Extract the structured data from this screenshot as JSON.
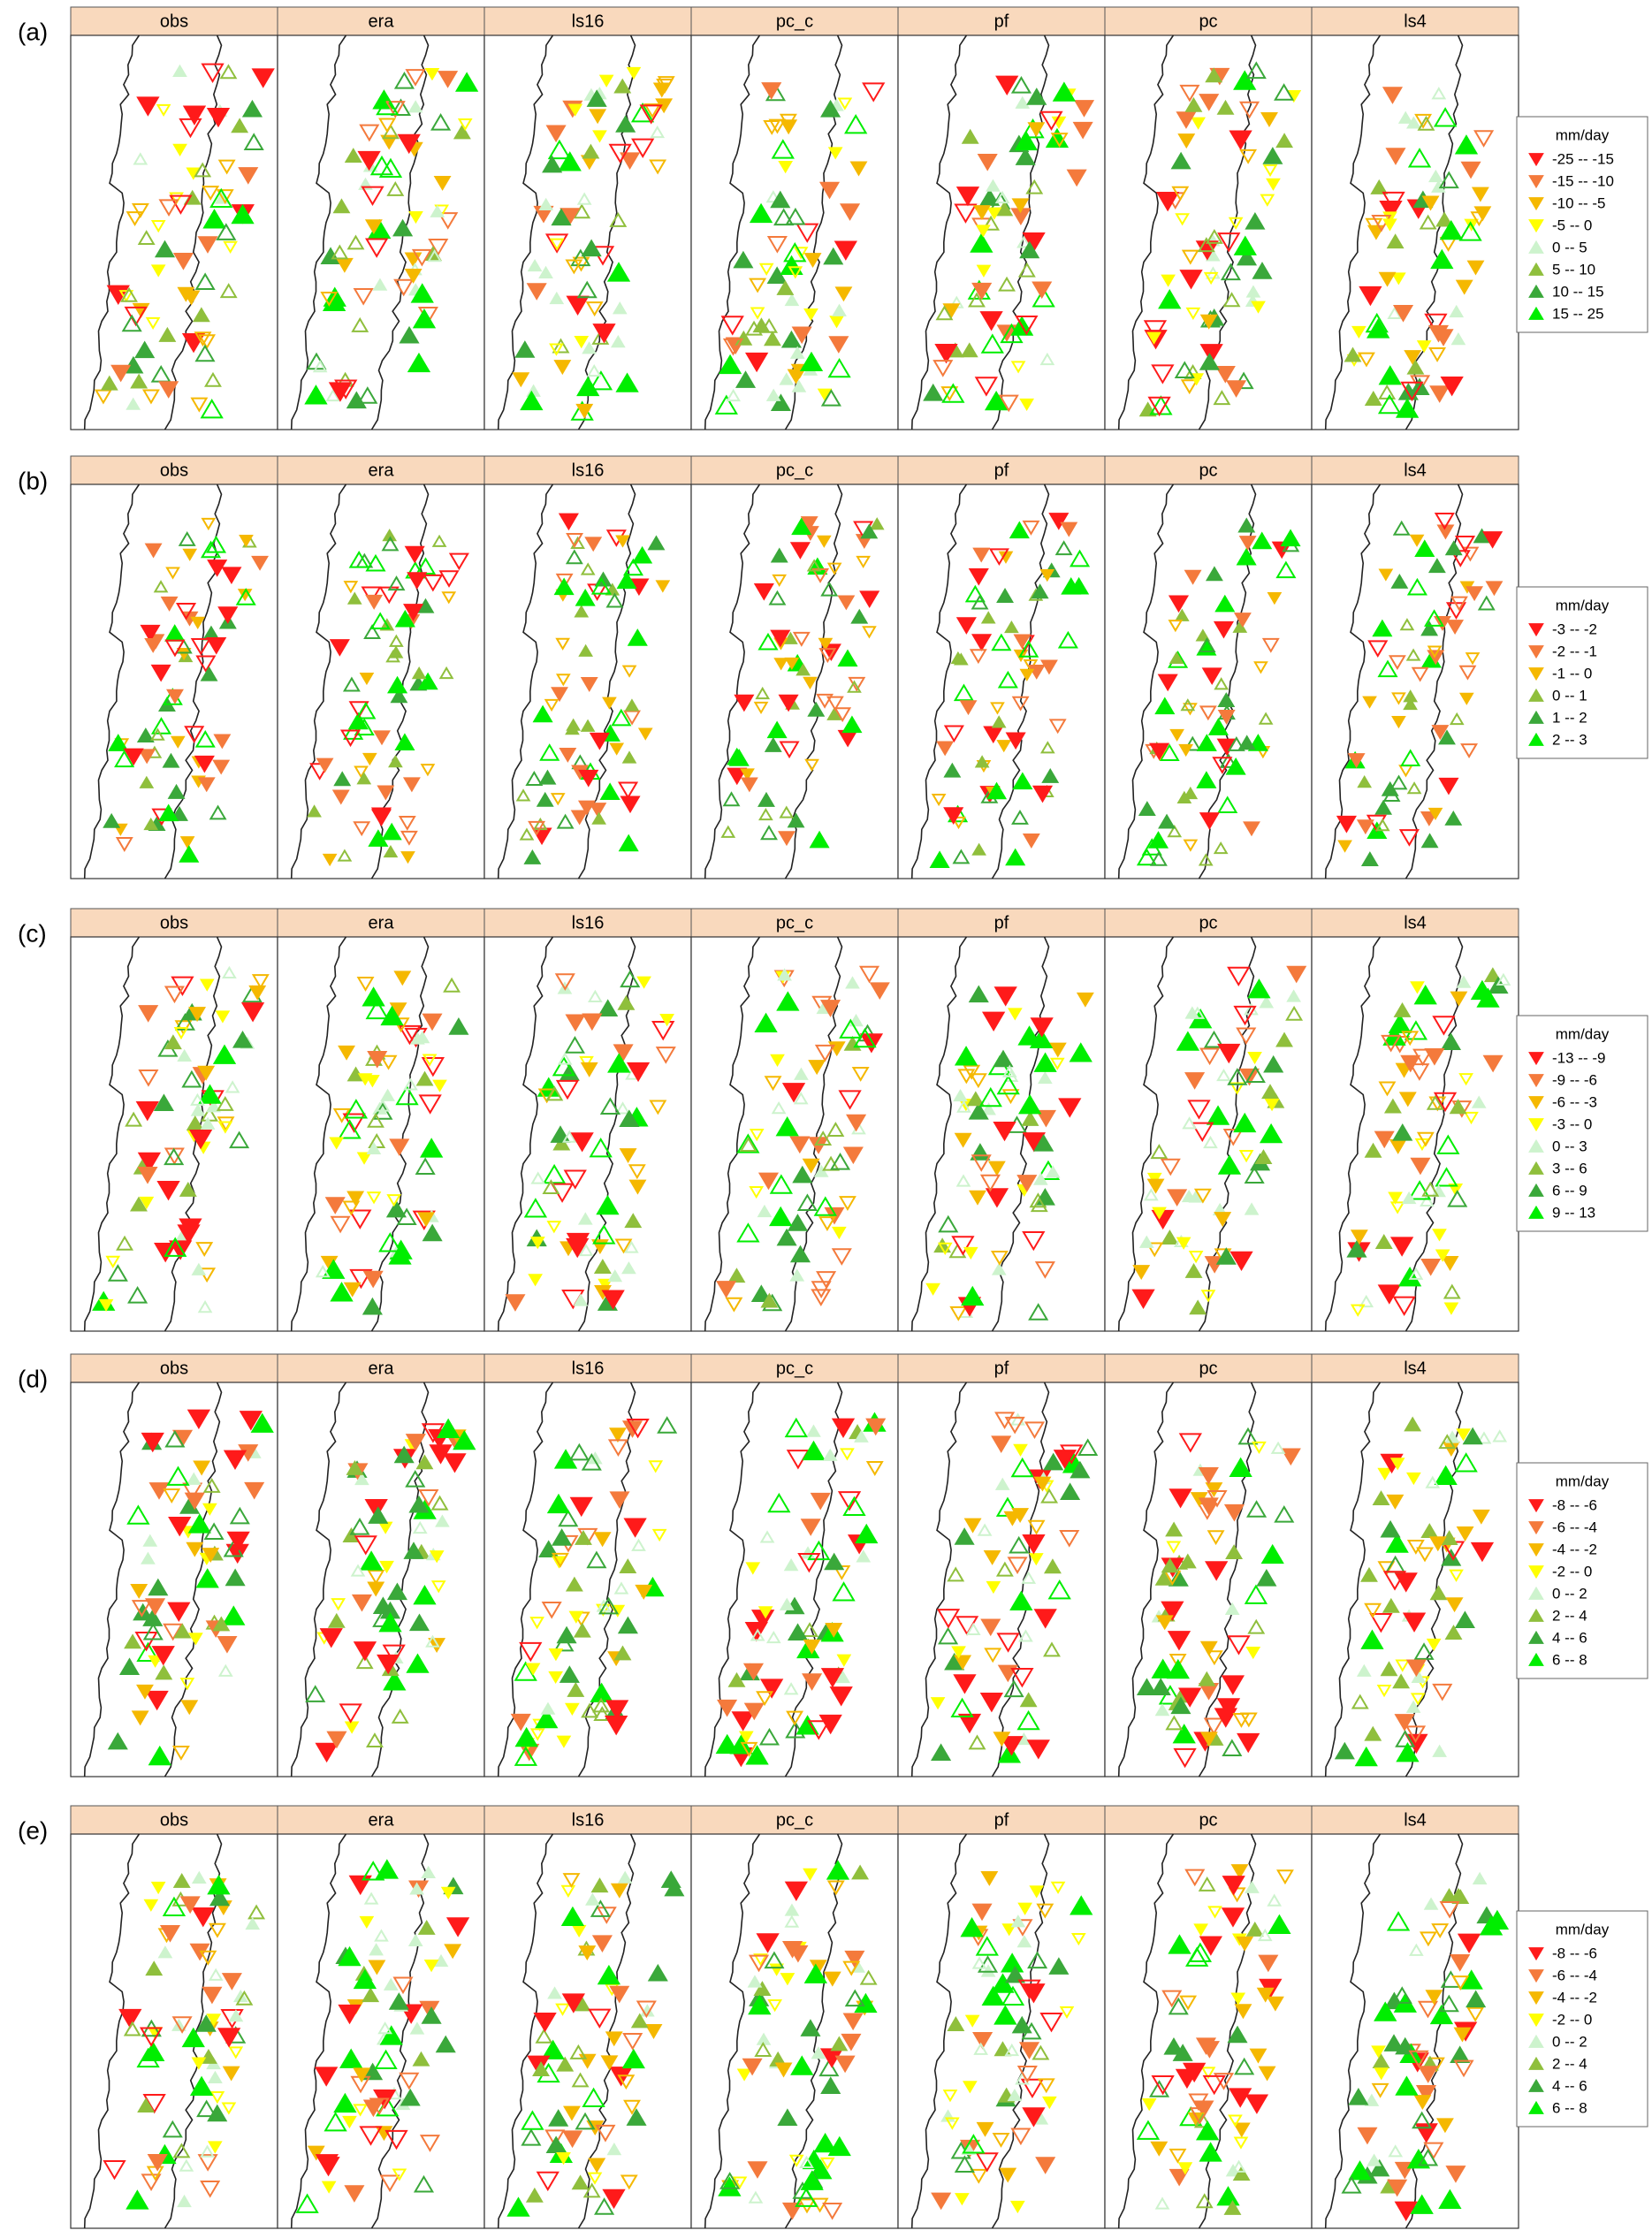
{
  "panels": [
    {
      "label": "(a)",
      "titles": [
        "obs",
        "era",
        "ls16",
        "pc_c",
        "pf",
        "pc",
        "ls4"
      ],
      "legend": {
        "title": "mm/day",
        "items": [
          {
            "label": "-25 -- -15",
            "color": "#ff1a1a"
          },
          {
            "label": "-15 -- -10",
            "color": "#f47a3c"
          },
          {
            "label": "-10 -- -5",
            "color": "#f5b800"
          },
          {
            "label": "-5 -- 0",
            "color": "#ffff00"
          },
          {
            "label": "0 -- 5",
            "color": "#cdf3cd"
          },
          {
            "label": "5 -- 10",
            "color": "#8fbf3c"
          },
          {
            "label": "10 -- 15",
            "color": "#3aa83a"
          },
          {
            "label": "15 -- 25",
            "color": "#00ee00"
          }
        ]
      }
    },
    {
      "label": "(b)",
      "titles": [
        "obs",
        "era",
        "ls16",
        "pc_c",
        "pf",
        "pc",
        "ls4"
      ],
      "legend": {
        "title": "mm/day",
        "items": [
          {
            "label": "-3 -- -2",
            "color": "#ff1a1a"
          },
          {
            "label": "-2 -- -1",
            "color": "#f47a3c"
          },
          {
            "label": "-1 -- 0",
            "color": "#f5b800"
          },
          {
            "label": "0 -- 1",
            "color": "#8fbf3c"
          },
          {
            "label": "1 -- 2",
            "color": "#3aa83a"
          },
          {
            "label": "2 -- 3",
            "color": "#00ee00"
          }
        ]
      }
    },
    {
      "label": "(c)",
      "titles": [
        "obs",
        "era",
        "ls16",
        "pc_c",
        "pf",
        "pc",
        "ls4"
      ],
      "legend": {
        "title": "mm/day",
        "items": [
          {
            "label": "-13 -- -9",
            "color": "#ff1a1a"
          },
          {
            "label": "-9 -- -6",
            "color": "#f47a3c"
          },
          {
            "label": "-6 -- -3",
            "color": "#f5b800"
          },
          {
            "label": "-3 -- 0",
            "color": "#ffff00"
          },
          {
            "label": "0 -- 3",
            "color": "#cdf3cd"
          },
          {
            "label": "3 -- 6",
            "color": "#8fbf3c"
          },
          {
            "label": "6 -- 9",
            "color": "#3aa83a"
          },
          {
            "label": "9 -- 13",
            "color": "#00ee00"
          }
        ]
      }
    },
    {
      "label": "(d)",
      "titles": [
        "obs",
        "era",
        "ls16",
        "pc_c",
        "pf",
        "pc",
        "ls4"
      ],
      "legend": {
        "title": "mm/day",
        "items": [
          {
            "label": "-8 -- -6",
            "color": "#ff1a1a"
          },
          {
            "label": "-6 -- -4",
            "color": "#f47a3c"
          },
          {
            "label": "-4 -- -2",
            "color": "#f5b800"
          },
          {
            "label": "-2 -- 0",
            "color": "#ffff00"
          },
          {
            "label": "0 -- 2",
            "color": "#cdf3cd"
          },
          {
            "label": "2 -- 4",
            "color": "#8fbf3c"
          },
          {
            "label": "4 -- 6",
            "color": "#3aa83a"
          },
          {
            "label": "6 -- 8",
            "color": "#00ee00"
          }
        ]
      }
    },
    {
      "label": "(e)",
      "titles": [
        "obs",
        "era",
        "ls16",
        "pc_c",
        "pf",
        "pc",
        "ls4"
      ],
      "legend": {
        "title": "mm/day",
        "items": [
          {
            "label": "-8 -- -6",
            "color": "#ff1a1a"
          },
          {
            "label": "-6 -- -4",
            "color": "#f47a3c"
          },
          {
            "label": "-4 -- -2",
            "color": "#f5b800"
          },
          {
            "label": "-2 -- 0",
            "color": "#ffff00"
          },
          {
            "label": "0 -- 2",
            "color": "#cdf3cd"
          },
          {
            "label": "2 -- 4",
            "color": "#8fbf3c"
          },
          {
            "label": "4 -- 6",
            "color": "#3aa83a"
          },
          {
            "label": "6 -- 8",
            "color": "#00ee00"
          }
        ]
      }
    }
  ]
}
